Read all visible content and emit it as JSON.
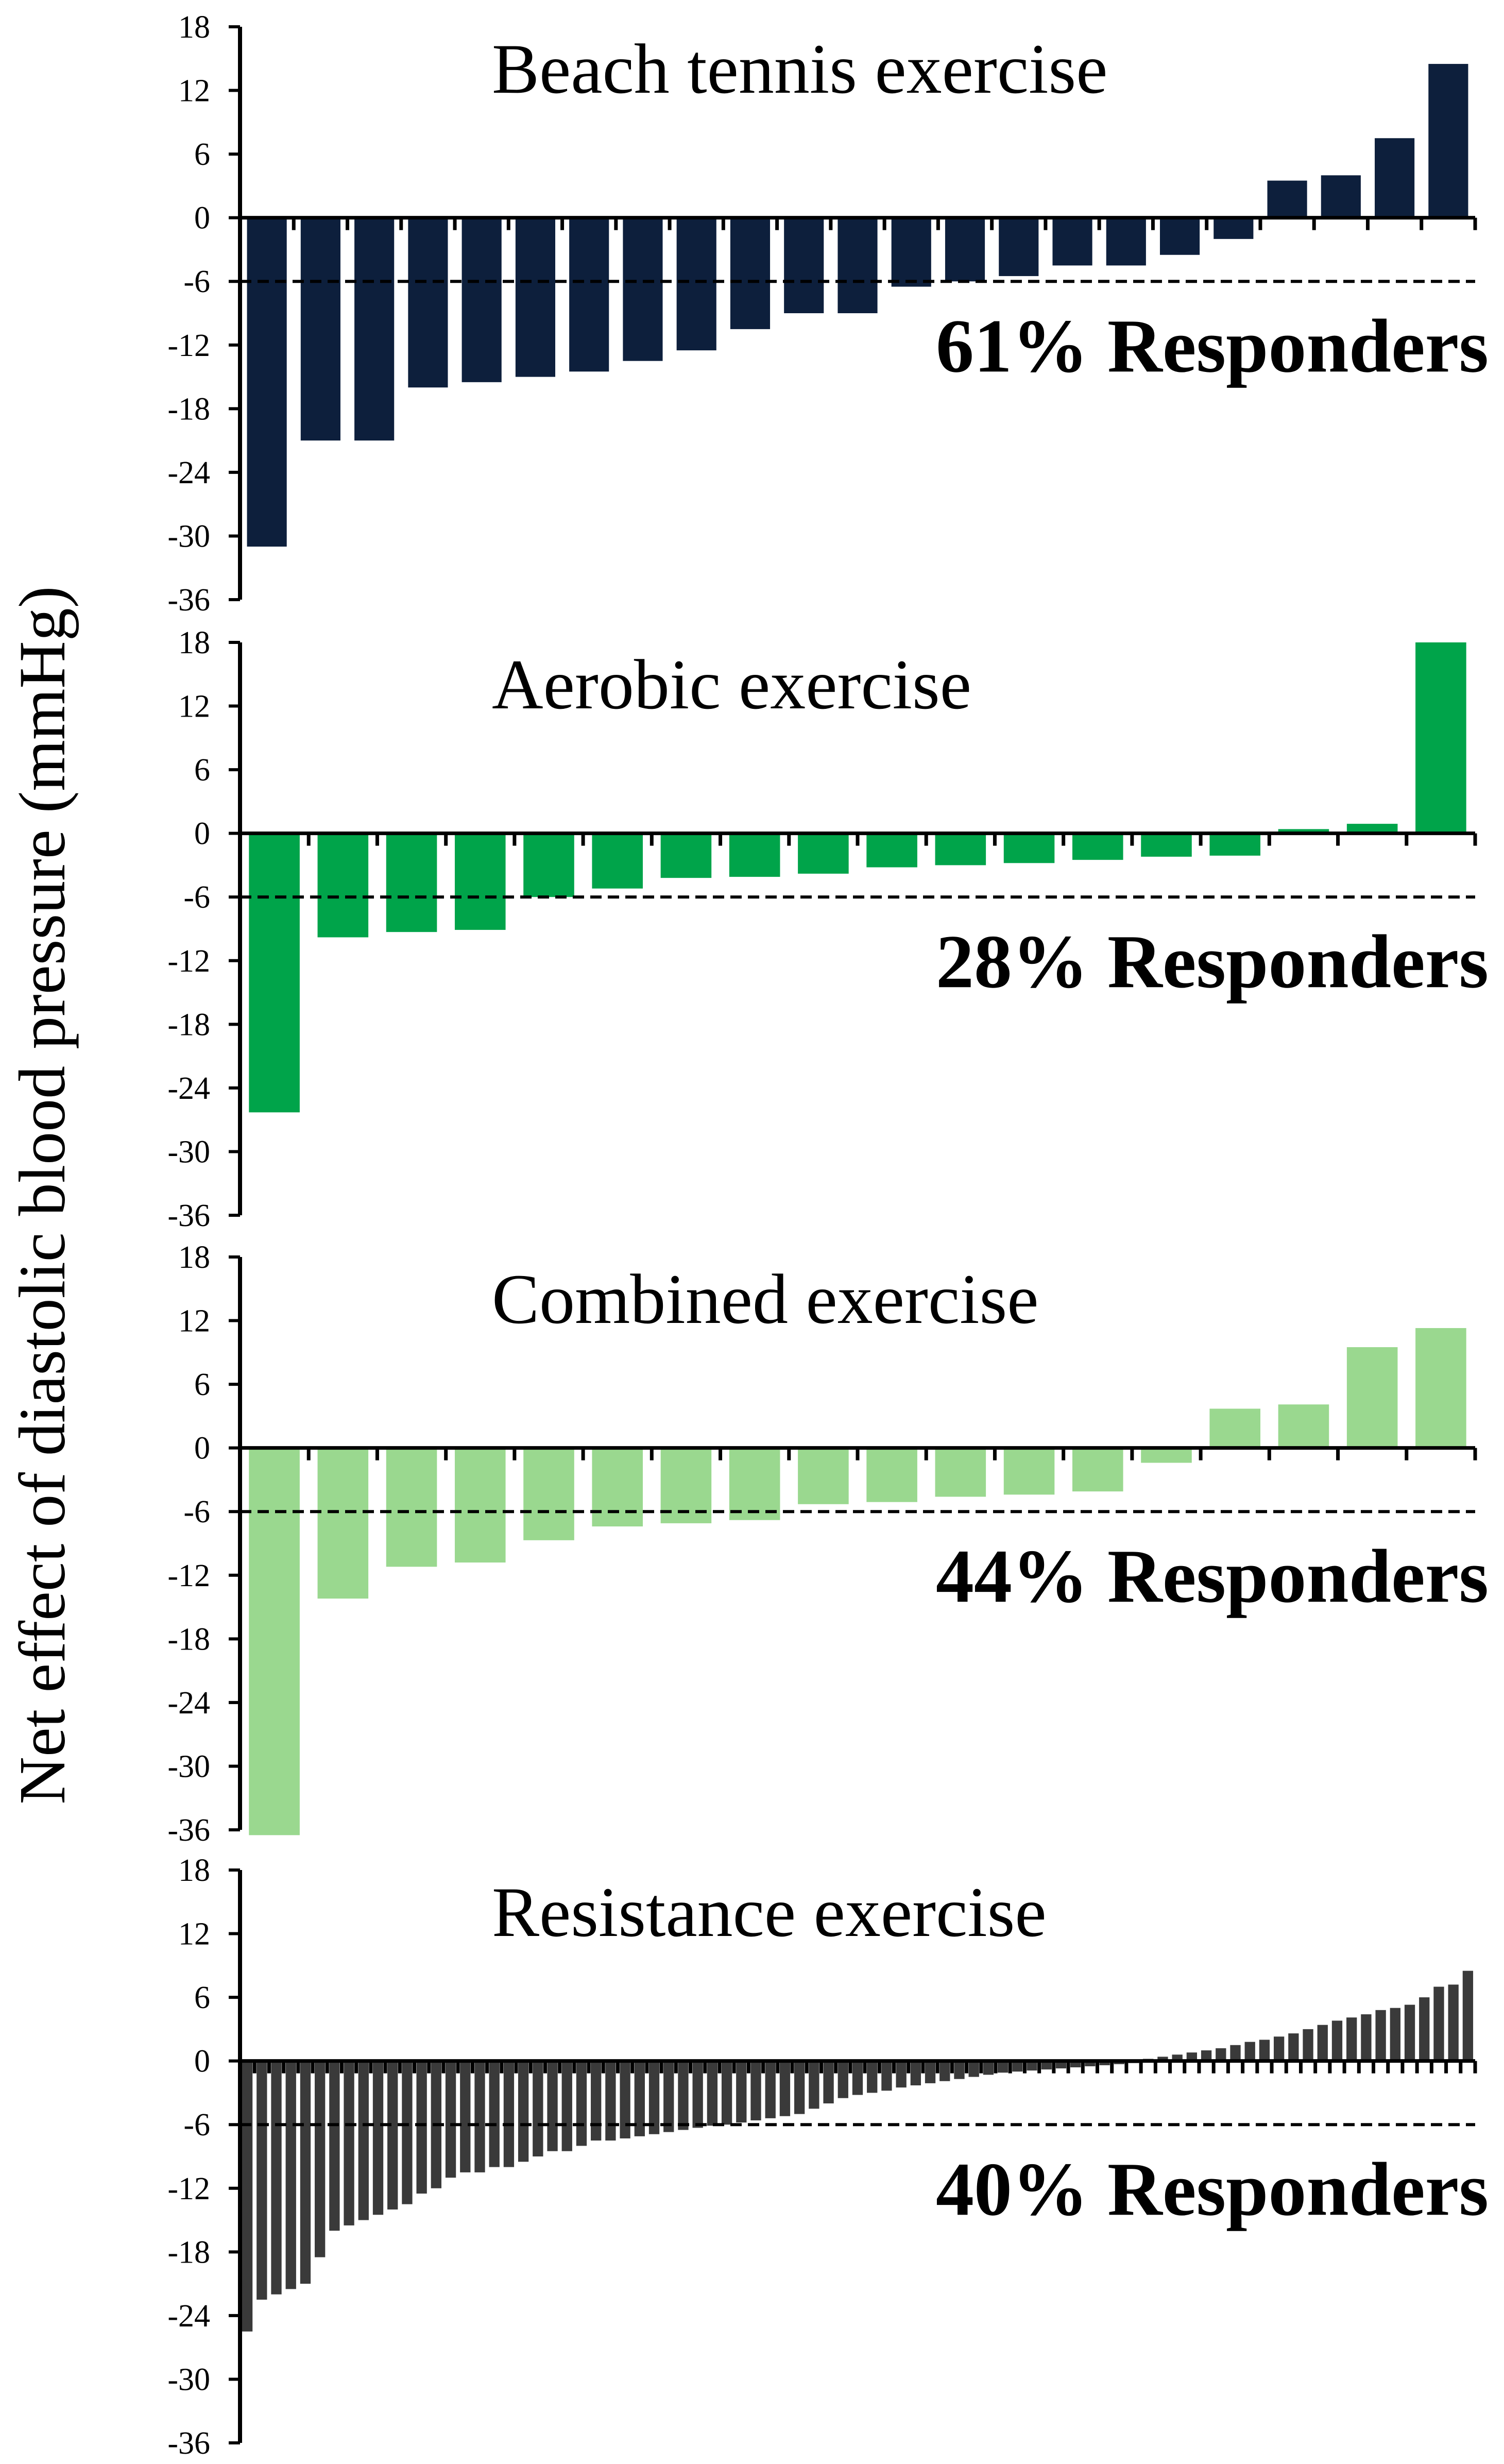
{
  "chart_data": {
    "type": "bar",
    "ylabel": "Net effect of diastolic blood pressure (mmHg)",
    "yticks": [
      18,
      12,
      6,
      0,
      -6,
      -12,
      -18,
      -24,
      -30,
      -36
    ],
    "ylim": [
      -36,
      18
    ],
    "threshold": -6,
    "grid": false,
    "panels": [
      {
        "title": "Beach tennis exercise",
        "responders": "61% Responders",
        "color": "#0d1f3c",
        "values": [
          -31,
          -21,
          -21,
          -16,
          -15.5,
          -15,
          -14.5,
          -13.5,
          -12.5,
          -10.5,
          -9,
          -9,
          -6.5,
          -6,
          -5.5,
          -4.5,
          -4.5,
          -3.5,
          -2,
          3.5,
          4,
          7.5,
          14.5
        ]
      },
      {
        "title": "Aerobic exercise",
        "responders": "28% Responders",
        "color": "#00a44a",
        "values": [
          -26.3,
          -9.8,
          -9.3,
          -9.1,
          -6,
          -5.2,
          -4.2,
          -4.1,
          -3.8,
          -3.2,
          -3,
          -2.8,
          -2.5,
          -2.2,
          -2.1,
          0.4,
          0.9,
          18
        ]
      },
      {
        "title": "Combined exercise",
        "responders": "44% Responders",
        "color": "#9ad88f",
        "values": [
          -36.5,
          -14.2,
          -11.2,
          -10.8,
          -8.7,
          -7.4,
          -7.1,
          -6.8,
          -5.3,
          -5.1,
          -4.6,
          -4.4,
          -4.1,
          -1.4,
          3.7,
          4.1,
          9.5,
          11.3
        ]
      },
      {
        "title": "Resistance exercise",
        "responders": "40% Responders",
        "color": "#3a3a3a",
        "values": [
          -25.5,
          -22.5,
          -22,
          -21.5,
          -21,
          -18.5,
          -16,
          -15.5,
          -15,
          -14.5,
          -14,
          -13.5,
          -12.5,
          -12,
          -11,
          -10.5,
          -10.5,
          -10,
          -10,
          -9.5,
          -9,
          -8.5,
          -8.5,
          -8,
          -7.5,
          -7.5,
          -7.3,
          -7.1,
          -6.9,
          -6.7,
          -6.5,
          -6.3,
          -6.1,
          -6,
          -5.8,
          -5.6,
          -5.4,
          -5.2,
          -5,
          -4.5,
          -4,
          -3.5,
          -3.2,
          -3,
          -2.8,
          -2.5,
          -2.3,
          -2.1,
          -1.9,
          -1.7,
          -1.5,
          -1.3,
          -1.1,
          -1,
          -0.9,
          -0.8,
          -0.7,
          -0.6,
          -0.5,
          -0.4,
          -0.3,
          -0.2,
          0.2,
          0.4,
          0.6,
          0.8,
          1,
          1.2,
          1.5,
          1.8,
          2,
          2.3,
          2.6,
          3,
          3.4,
          3.8,
          4.1,
          4.4,
          4.8,
          5,
          5.3,
          6,
          7,
          7.2,
          8.5
        ]
      }
    ]
  }
}
